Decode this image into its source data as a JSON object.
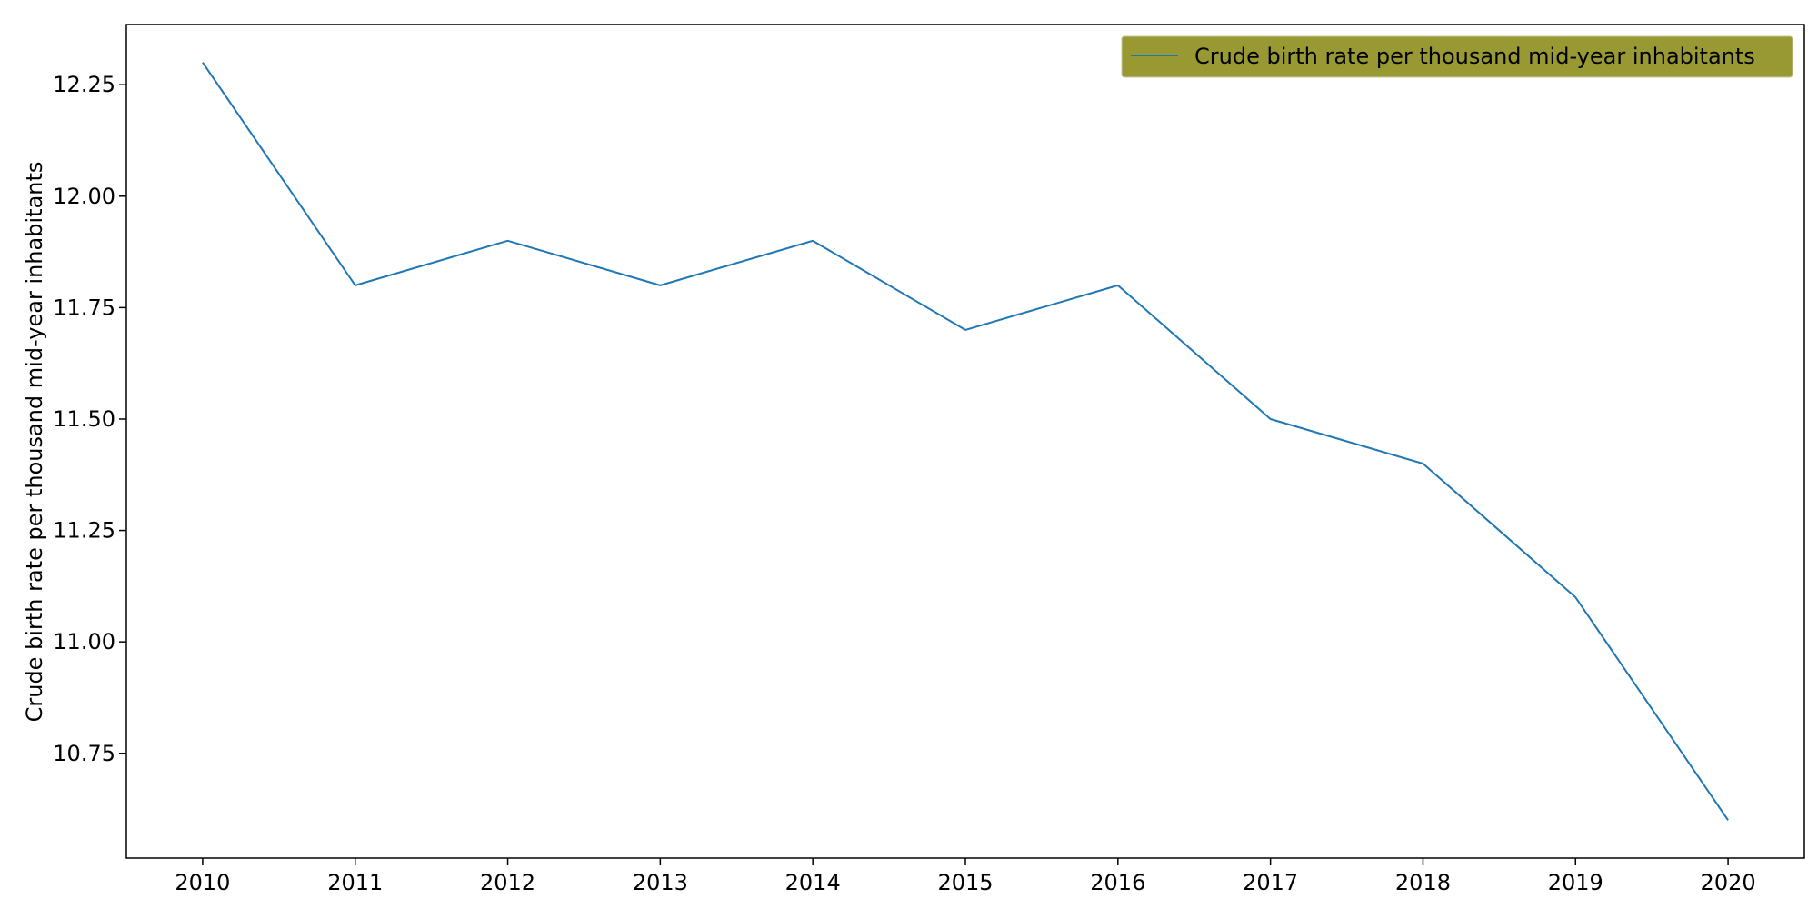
{
  "chart_data": {
    "type": "line",
    "x": [
      2010,
      2011,
      2012,
      2013,
      2014,
      2015,
      2016,
      2017,
      2018,
      2019,
      2020
    ],
    "xticks": [
      "2010",
      "2011",
      "2012",
      "2013",
      "2014",
      "2015",
      "2016",
      "2017",
      "2018",
      "2019",
      "2020"
    ],
    "series": [
      {
        "name": "Crude birth rate per thousand mid-year inhabitants",
        "color": "#1f77b4",
        "values": [
          12.3,
          11.8,
          11.9,
          11.8,
          11.9,
          11.7,
          11.8,
          11.5,
          11.4,
          11.1,
          10.6
        ]
      }
    ],
    "title": "",
    "xlabel": "",
    "ylabel": "Crude birth rate per thousand mid-year inhabitants",
    "ylim": [
      10.515,
      12.385
    ],
    "xlim": [
      2009.5,
      2020.5
    ],
    "yticks": [
      "10.75",
      "11.00",
      "11.25",
      "11.50",
      "11.75",
      "12.00",
      "12.25"
    ],
    "grid": false,
    "legend": {
      "placement": "top-right",
      "background": "#999933"
    }
  }
}
